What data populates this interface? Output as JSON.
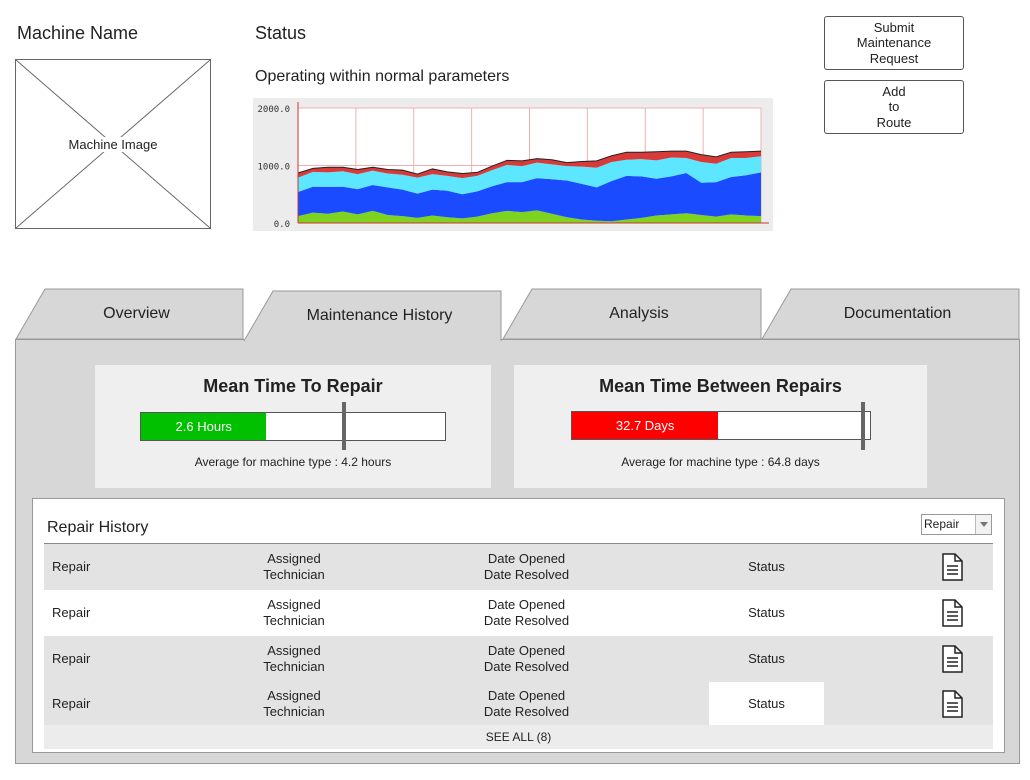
{
  "header": {
    "machine_name": "Machine Name",
    "machine_image_label": "Machine Image",
    "status_title": "Status",
    "status_text": "Operating within normal parameters"
  },
  "actions": {
    "submit_request": [
      "Submit",
      "Maintenance",
      "Request"
    ],
    "add_to_route": [
      "Add",
      "to",
      "Route"
    ]
  },
  "tabs": [
    {
      "label": "Overview",
      "active": false
    },
    {
      "label": "Maintenance History",
      "active": true
    },
    {
      "label": "Analysis",
      "active": false
    },
    {
      "label": "Documentation",
      "active": false
    }
  ],
  "metrics": {
    "mttr": {
      "title": "Mean Time To Repair",
      "value_label": "2.6 Hours",
      "value": 2.6,
      "average": 4.2,
      "max": 6.3,
      "fill_color": "#00c000",
      "average_text": "Average for machine type : 4.2 hours"
    },
    "mtbr": {
      "title": "Mean Time Between Repairs",
      "value_label": "32.7 Days",
      "value": 32.7,
      "average": 64.8,
      "max": 66.6,
      "fill_color": "#ff0000",
      "average_text": "Average for machine type : 64.8 days"
    }
  },
  "repair_history": {
    "title": "Repair History",
    "filter_value": "Repair",
    "rows": [
      {
        "repair": "Repair",
        "technician": [
          "Assigned",
          "Technician"
        ],
        "dates": [
          "Date Opened",
          "Date Resolved"
        ],
        "status": "Status"
      },
      {
        "repair": "Repair",
        "technician": [
          "Assigned",
          "Technician"
        ],
        "dates": [
          "Date Opened",
          "Date Resolved"
        ],
        "status": "Status"
      },
      {
        "repair": "Repair",
        "technician": [
          "Assigned",
          "Technician"
        ],
        "dates": [
          "Date Opened",
          "Date Resolved"
        ],
        "status": "Status"
      },
      {
        "repair": "Repair",
        "technician": [
          "Assigned",
          "Technician"
        ],
        "dates": [
          "Date Opened",
          "Date Resolved"
        ],
        "status": "Status"
      }
    ],
    "see_all": "SEE ALL (8)"
  },
  "chart_data": {
    "type": "area",
    "title": "",
    "ylim": [
      0,
      2000
    ],
    "y_ticks": [
      "2000.0",
      "1000.0",
      "0.0"
    ],
    "series": [
      {
        "name": "green",
        "color": "#7ed321",
        "values": [
          120,
          180,
          160,
          200,
          150,
          210,
          140,
          120,
          90,
          130,
          100,
          80,
          110,
          170,
          210,
          190,
          220,
          160,
          100,
          60,
          40,
          30,
          60,
          90,
          130,
          150,
          170,
          140,
          110,
          150,
          130,
          120
        ]
      },
      {
        "name": "blue",
        "color": "#1a4bff",
        "values": [
          420,
          450,
          470,
          430,
          440,
          450,
          480,
          460,
          420,
          450,
          460,
          420,
          440,
          470,
          500,
          520,
          560,
          600,
          640,
          620,
          580,
          700,
          760,
          720,
          640,
          660,
          700,
          560,
          600,
          650,
          700,
          760
        ]
      },
      {
        "name": "cyan",
        "color": "#5ce6ff",
        "values": [
          250,
          260,
          250,
          270,
          260,
          250,
          240,
          260,
          280,
          270,
          260,
          280,
          270,
          280,
          300,
          280,
          270,
          260,
          250,
          300,
          340,
          330,
          280,
          300,
          320,
          330,
          260,
          360,
          320,
          330,
          300,
          280
        ]
      },
      {
        "name": "red",
        "color": "#d83a3a",
        "values": [
          80,
          60,
          90,
          70,
          80,
          60,
          70,
          80,
          60,
          90,
          70,
          80,
          60,
          70,
          80,
          90,
          70,
          80,
          60,
          90,
          120,
          110,
          130,
          120,
          150,
          110,
          120,
          130,
          120,
          100,
          110,
          90
        ]
      }
    ]
  }
}
